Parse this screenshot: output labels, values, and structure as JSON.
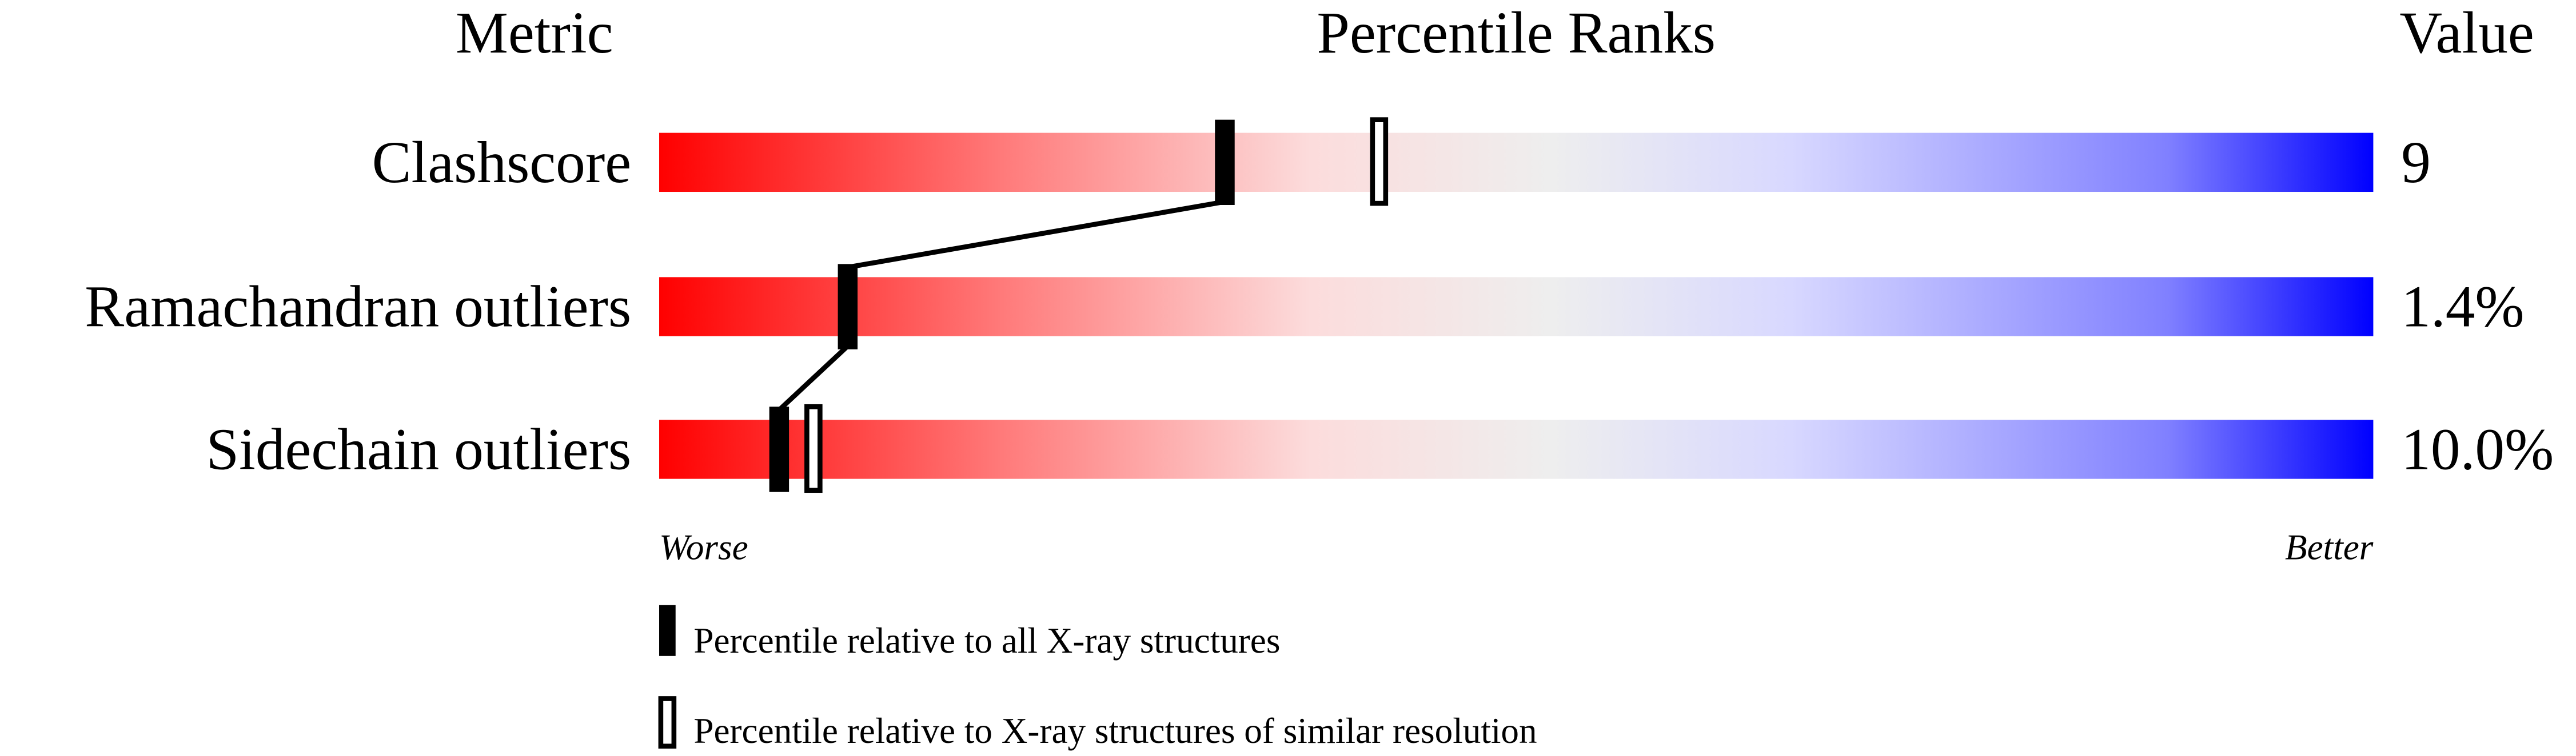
{
  "chart_data": {
    "type": "bar",
    "headers": {
      "metric": "Metric",
      "ranks": "Percentile Ranks",
      "value": "Value"
    },
    "axis": {
      "min": 0,
      "max": 100,
      "left_label": "Worse",
      "right_label": "Better"
    },
    "gradient_colors": [
      "#ff0000",
      "#ff7070",
      "#fcdcdc",
      "#eeeeee",
      "#d8d8ff",
      "#8080ff",
      "#0000ff"
    ],
    "rows": [
      {
        "metric": "Clashscore",
        "value": "9",
        "percentile_all": 33,
        "percentile_similar": 42
      },
      {
        "metric": "Ramachandran outliers",
        "value": "1.4%",
        "percentile_all": 11,
        "percentile_similar": null
      },
      {
        "metric": "Sidechain outliers",
        "value": "10.0%",
        "percentile_all": 7,
        "percentile_similar": 9
      }
    ],
    "legend": {
      "all": "Percentile relative to all X-ray structures",
      "similar": "Percentile relative to X-ray structures of similar resolution"
    }
  }
}
